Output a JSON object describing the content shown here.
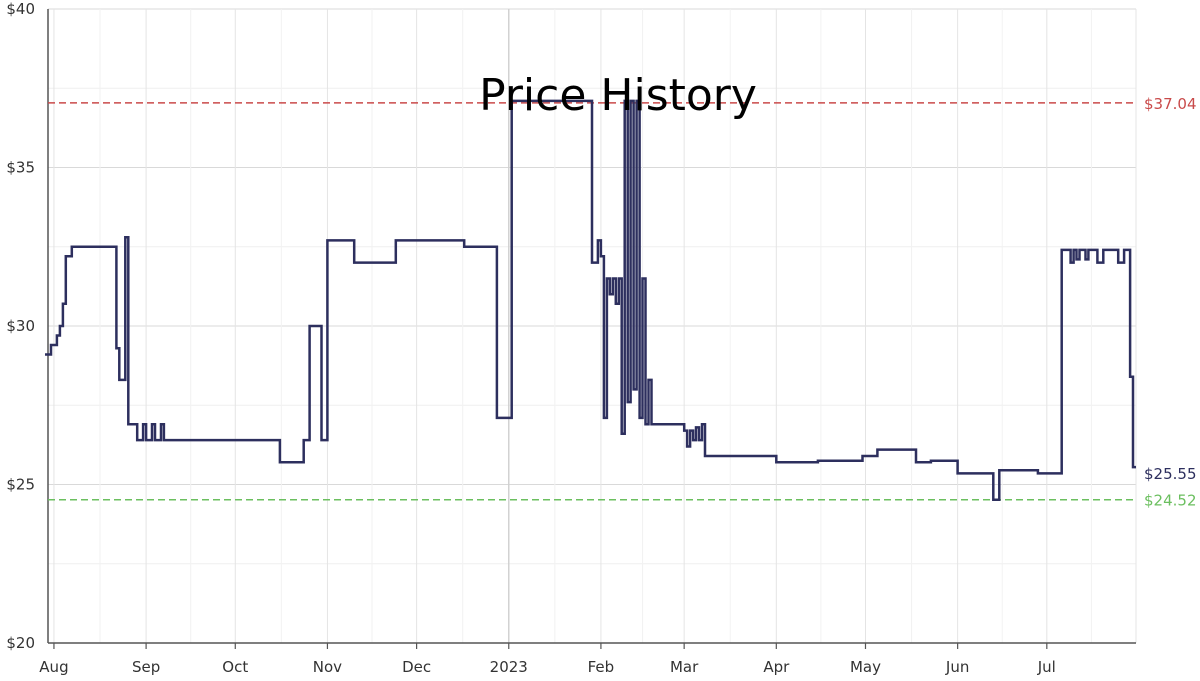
{
  "chart_data": {
    "type": "line",
    "title": "Price History",
    "ylim": [
      20,
      40
    ],
    "y_ticks": [
      "$20",
      "$25",
      "$30",
      "$35",
      "$40"
    ],
    "y_tick_values": [
      20,
      25,
      30,
      35,
      40
    ],
    "x_range": [
      "2022-07-30",
      "2023-07-31"
    ],
    "x_ticks": [
      {
        "label": "Aug",
        "date": "2022-08-01"
      },
      {
        "label": "Sep",
        "date": "2022-09-01"
      },
      {
        "label": "Oct",
        "date": "2022-10-01"
      },
      {
        "label": "Nov",
        "date": "2022-11-01"
      },
      {
        "label": "Dec",
        "date": "2022-12-01"
      },
      {
        "label": "2023",
        "date": "2023-01-01"
      },
      {
        "label": "Feb",
        "date": "2023-02-01"
      },
      {
        "label": "Mar",
        "date": "2023-03-01"
      },
      {
        "label": "Apr",
        "date": "2023-04-01"
      },
      {
        "label": "May",
        "date": "2023-05-01"
      },
      {
        "label": "Jun",
        "date": "2023-06-01"
      },
      {
        "label": "Jul",
        "date": "2023-07-01"
      }
    ],
    "grid": true,
    "reference_lines": [
      {
        "label": "$37.04",
        "value": 37.04,
        "color": "#c94a4a"
      },
      {
        "label": "$24.52",
        "value": 24.52,
        "color": "#6bbf5f"
      }
    ],
    "current_label": {
      "label": "$25.55",
      "value": 25.55,
      "color": "#2d2f5e"
    },
    "series": [
      {
        "color": "#2d2f5e",
        "step": true,
        "points": [
          [
            "2022-07-29",
            29.1
          ],
          [
            "2022-07-31",
            29.4
          ],
          [
            "2022-08-02",
            29.7
          ],
          [
            "2022-08-03",
            30.0
          ],
          [
            "2022-08-04",
            30.7
          ],
          [
            "2022-08-05",
            32.2
          ],
          [
            "2022-08-07",
            32.5
          ],
          [
            "2022-08-22",
            29.3
          ],
          [
            "2022-08-23",
            28.3
          ],
          [
            "2022-08-25",
            32.8
          ],
          [
            "2022-08-26",
            26.9
          ],
          [
            "2022-08-29",
            26.4
          ],
          [
            "2022-08-31",
            26.9
          ],
          [
            "2022-09-01",
            26.4
          ],
          [
            "2022-09-03",
            26.9
          ],
          [
            "2022-09-04",
            26.4
          ],
          [
            "2022-09-06",
            26.9
          ],
          [
            "2022-09-07",
            26.4
          ],
          [
            "2022-10-16",
            25.7
          ],
          [
            "2022-10-24",
            26.4
          ],
          [
            "2022-10-26",
            30.0
          ],
          [
            "2022-10-30",
            26.4
          ],
          [
            "2022-11-01",
            32.7
          ],
          [
            "2022-11-10",
            32.0
          ],
          [
            "2022-11-24",
            32.7
          ],
          [
            "2022-12-17",
            32.5
          ],
          [
            "2022-12-28",
            27.1
          ],
          [
            "2023-01-02",
            37.1
          ],
          [
            "2023-01-29",
            32.0
          ],
          [
            "2023-01-31",
            32.7
          ],
          [
            "2023-02-01",
            32.2
          ],
          [
            "2023-02-02",
            27.1
          ],
          [
            "2023-02-03",
            31.5
          ],
          [
            "2023-02-04",
            31.0
          ],
          [
            "2023-02-05",
            31.5
          ],
          [
            "2023-02-06",
            30.7
          ],
          [
            "2023-02-07",
            31.5
          ],
          [
            "2023-02-08",
            26.6
          ],
          [
            "2023-02-09",
            37.1
          ],
          [
            "2023-02-10",
            27.6
          ],
          [
            "2023-02-11",
            37.1
          ],
          [
            "2023-02-12",
            28.0
          ],
          [
            "2023-02-13",
            37.1
          ],
          [
            "2023-02-14",
            27.1
          ],
          [
            "2023-02-15",
            31.5
          ],
          [
            "2023-02-16",
            26.9
          ],
          [
            "2023-02-17",
            28.3
          ],
          [
            "2023-02-18",
            26.9
          ],
          [
            "2023-03-01",
            26.7
          ],
          [
            "2023-03-02",
            26.2
          ],
          [
            "2023-03-03",
            26.7
          ],
          [
            "2023-03-04",
            26.4
          ],
          [
            "2023-03-05",
            26.8
          ],
          [
            "2023-03-06",
            26.4
          ],
          [
            "2023-03-07",
            26.9
          ],
          [
            "2023-03-08",
            25.9
          ],
          [
            "2023-04-01",
            25.7
          ],
          [
            "2023-04-15",
            25.75
          ],
          [
            "2023-04-30",
            25.9
          ],
          [
            "2023-05-05",
            26.1
          ],
          [
            "2023-05-18",
            25.7
          ],
          [
            "2023-05-23",
            25.75
          ],
          [
            "2023-06-01",
            25.35
          ],
          [
            "2023-06-13",
            24.52
          ],
          [
            "2023-06-15",
            25.45
          ],
          [
            "2023-06-28",
            25.35
          ],
          [
            "2023-07-06",
            32.4
          ],
          [
            "2023-07-09",
            32.0
          ],
          [
            "2023-07-10",
            32.4
          ],
          [
            "2023-07-11",
            32.1
          ],
          [
            "2023-07-12",
            32.4
          ],
          [
            "2023-07-14",
            32.1
          ],
          [
            "2023-07-15",
            32.4
          ],
          [
            "2023-07-18",
            32.0
          ],
          [
            "2023-07-20",
            32.4
          ],
          [
            "2023-07-25",
            32.0
          ],
          [
            "2023-07-27",
            32.4
          ],
          [
            "2023-07-29",
            28.4
          ],
          [
            "2023-07-30",
            25.55
          ]
        ]
      }
    ]
  }
}
